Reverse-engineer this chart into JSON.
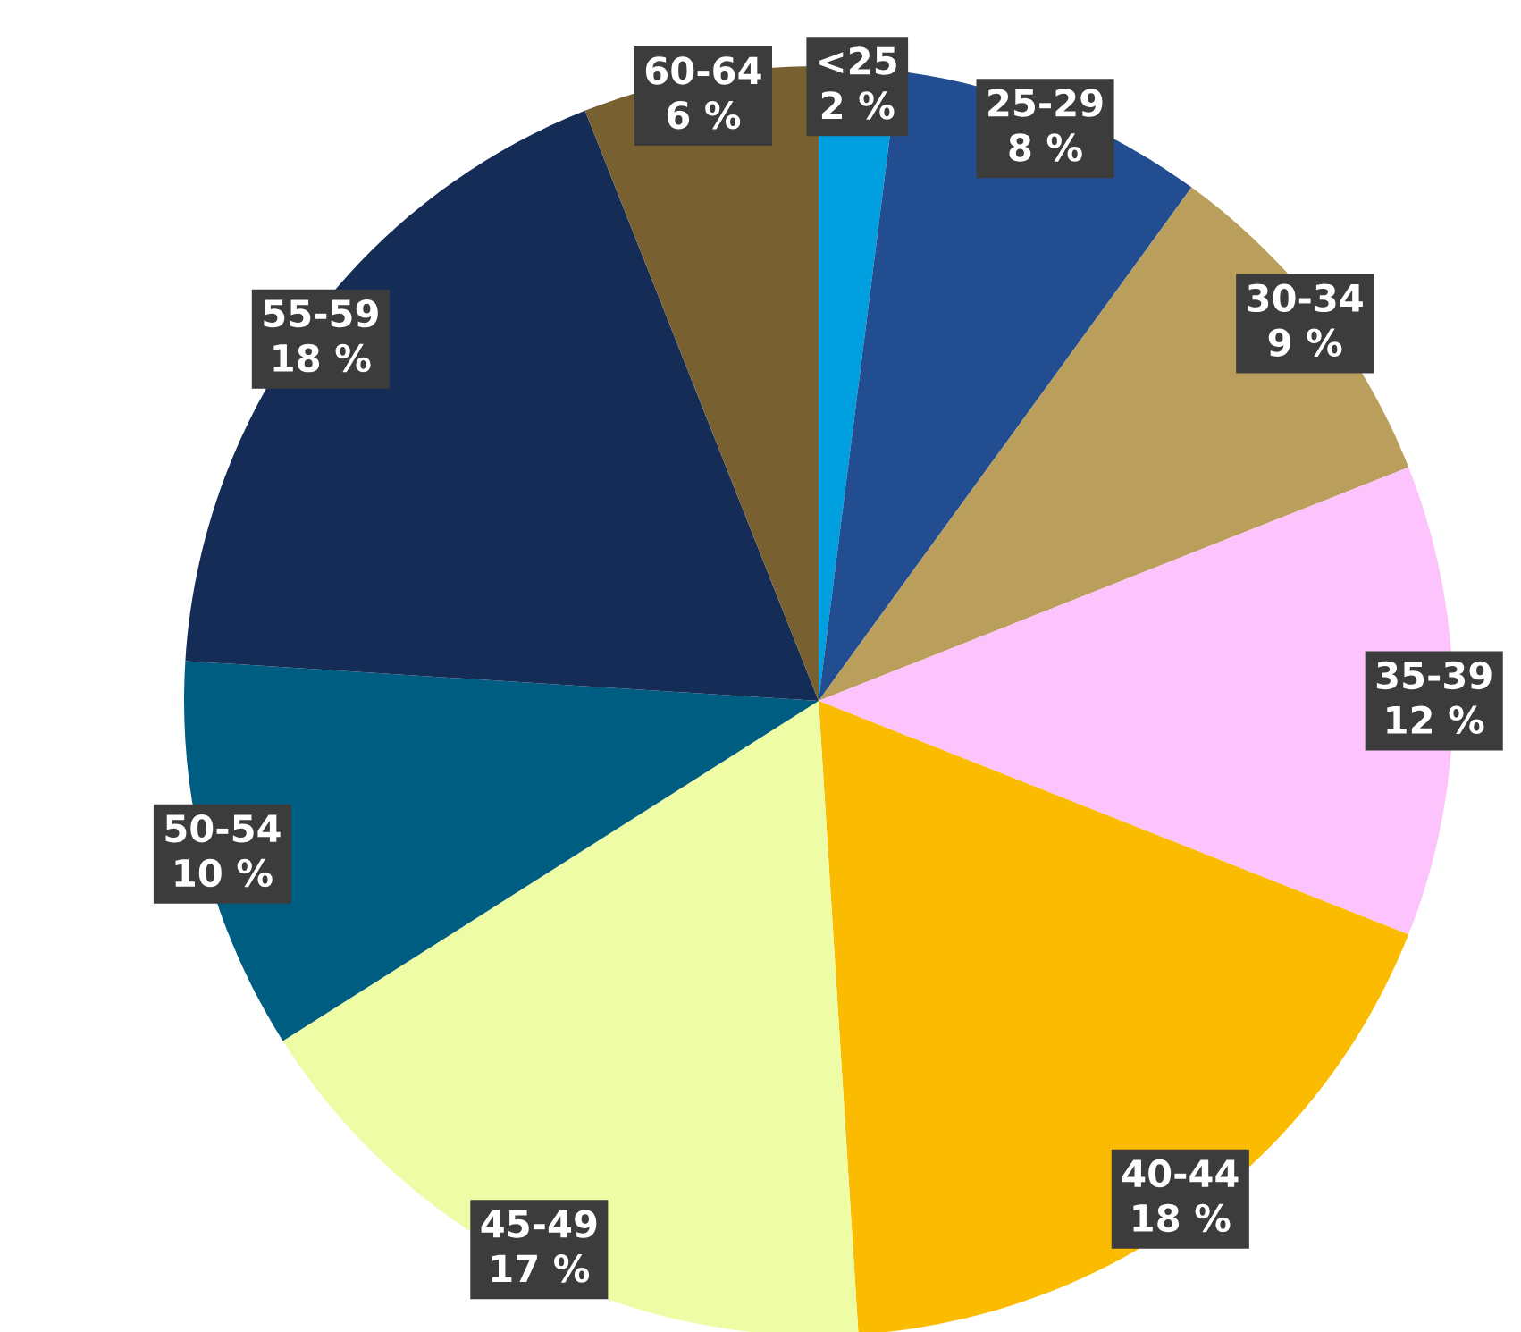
{
  "chart_data": {
    "type": "pie",
    "categories": [
      "<25",
      "25-29",
      "30-34",
      "35-39",
      "40-44",
      "45-49",
      "50-54",
      "55-59",
      "60-64"
    ],
    "values": [
      2,
      8,
      9,
      12,
      18,
      17,
      10,
      18,
      6
    ],
    "value_labels": [
      "2 %",
      "8 %",
      "9 %",
      "12 %",
      "18 %",
      "17 %",
      "10 %",
      "18 %",
      "6 %"
    ],
    "colors": [
      "#00a0e0",
      "#234d91",
      "#b99e5c",
      "#fdc3fd",
      "#fbbb00",
      "#eefca6",
      "#005d82",
      "#152c57",
      "#786030"
    ],
    "legend": false
  }
}
